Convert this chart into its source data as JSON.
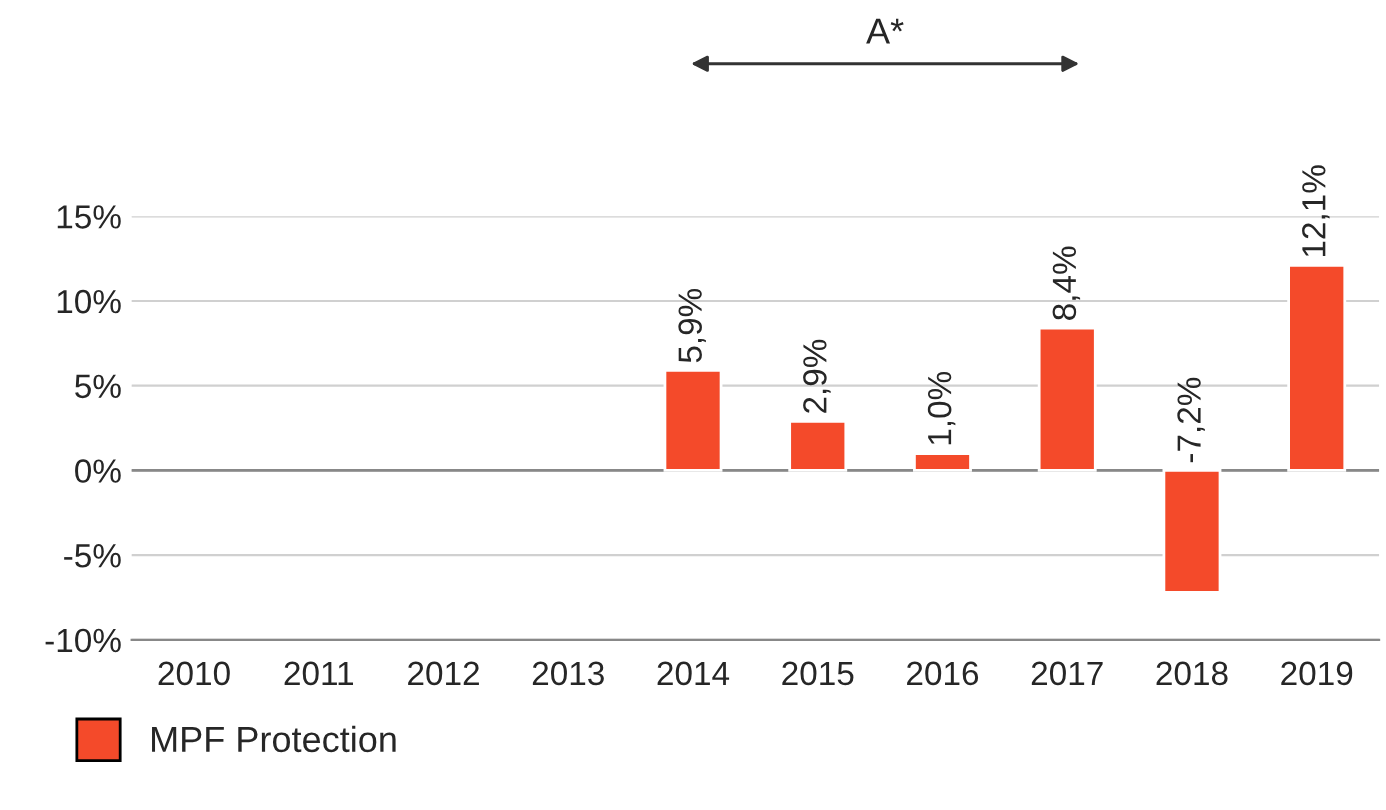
{
  "chart_data": {
    "type": "bar",
    "categories": [
      "2010",
      "2011",
      "2012",
      "2013",
      "2014",
      "2015",
      "2016",
      "2017",
      "2018",
      "2019"
    ],
    "series": [
      {
        "name": "MPF Protection",
        "color": "#f44a2a",
        "values": [
          null,
          null,
          null,
          null,
          5.9,
          2.9,
          1.0,
          8.4,
          -7.2,
          12.1
        ],
        "value_labels": [
          null,
          null,
          null,
          null,
          "5,9%",
          "2,9%",
          "1,0%",
          "8,4%",
          "-7,2%",
          "12,1%"
        ]
      }
    ],
    "ylim": [
      -10,
      15
    ],
    "yticks": [
      {
        "value": -10,
        "label": "-10%"
      },
      {
        "value": -5,
        "label": "-5%"
      },
      {
        "value": 0,
        "label": "0%"
      },
      {
        "value": 5,
        "label": "5%"
      },
      {
        "value": 10,
        "label": "10%"
      },
      {
        "value": 15,
        "label": "15%"
      }
    ],
    "annotations": [
      "A*"
    ],
    "grid": "y",
    "legend": "bottom left"
  }
}
